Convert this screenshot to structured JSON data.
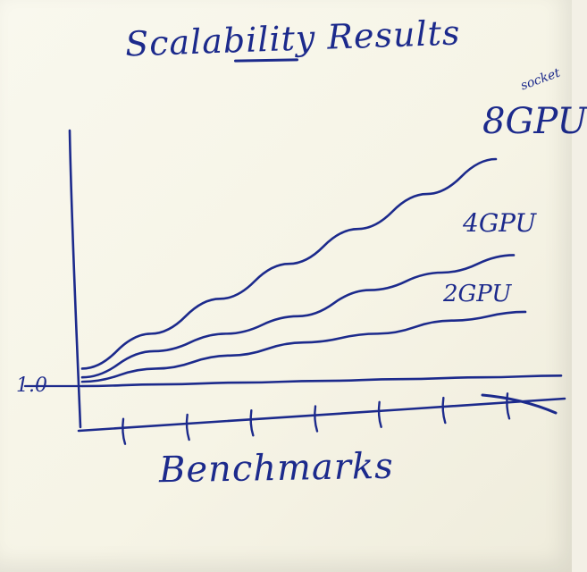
{
  "chart_data": {
    "type": "line",
    "title": "Scalability Results",
    "xlabel": "Benchmarks",
    "ylabel": "",
    "y_tick_labels": [
      "1.0"
    ],
    "x_tick_count": 7,
    "grid": false,
    "legend": "none (series labeled at line ends)",
    "ink_color": "#1c2a8c",
    "background_color": "#f7f5e8",
    "series": [
      {
        "name": "8GPU",
        "annotation": "socket",
        "values": [
          1.2,
          1.6,
          2.0,
          2.4,
          2.8,
          3.2,
          3.6
        ]
      },
      {
        "name": "4GPU",
        "values": [
          1.1,
          1.4,
          1.6,
          1.8,
          2.1,
          2.3,
          2.5
        ]
      },
      {
        "name": "2GPU",
        "values": [
          1.05,
          1.2,
          1.35,
          1.5,
          1.6,
          1.75,
          1.85
        ]
      },
      {
        "name": "",
        "values": [
          1.0,
          1.02,
          1.04,
          1.06,
          1.08,
          1.1,
          1.12
        ]
      }
    ]
  }
}
